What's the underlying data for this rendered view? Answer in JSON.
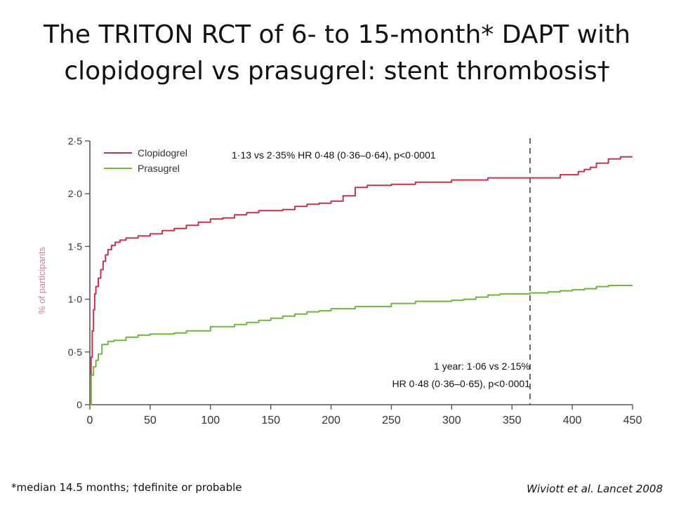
{
  "slide": {
    "title_line1": "The TRITON RCT of 6- to 15-month* DAPT with",
    "title_line2": "clopidogrel vs prasugrel: stent thrombosis†",
    "footnote": "*median 14.5 months; †definite or probable",
    "citation": "Wiviott et al. Lancet 2008"
  },
  "chart_data": {
    "type": "line",
    "ylabel": "% of participants",
    "xlabel": "",
    "xlim": [
      0,
      450
    ],
    "ylim": [
      0,
      2.5
    ],
    "x_ticks": [
      0,
      50,
      100,
      150,
      200,
      250,
      300,
      350,
      400,
      450
    ],
    "x_tick_labels": [
      "0",
      "50",
      "100",
      "150",
      "200",
      "250",
      "300",
      "350",
      "400",
      "450"
    ],
    "y_ticks": [
      0,
      0.5,
      1.0,
      1.5,
      2.0,
      2.5
    ],
    "y_tick_labels": [
      "0",
      "0·5",
      "1·0",
      "1·5",
      "2·0",
      "2·5"
    ],
    "grid": false,
    "legend_position": "top-left",
    "reference_line": {
      "x": 365,
      "style": "dashed"
    },
    "annotations": {
      "overall": "1·13 vs 2·35% HR 0·48 (0·36–0·64), p<0·0001",
      "one_year_line1": "1 year: 1·06 vs 2·15%",
      "one_year_line2": "HR 0·48 (0·36–0·65), p<0·0001"
    },
    "series": [
      {
        "name": "Clopidogrel",
        "color": "#c2334d",
        "points": [
          [
            0,
            0
          ],
          [
            0.5,
            0
          ],
          [
            1,
            0.45
          ],
          [
            2,
            0.7
          ],
          [
            3,
            0.9
          ],
          [
            4,
            1.05
          ],
          [
            5,
            1.12
          ],
          [
            7,
            1.2
          ],
          [
            9,
            1.28
          ],
          [
            11,
            1.36
          ],
          [
            13,
            1.42
          ],
          [
            15,
            1.47
          ],
          [
            18,
            1.51
          ],
          [
            21,
            1.54
          ],
          [
            25,
            1.56
          ],
          [
            30,
            1.58
          ],
          [
            40,
            1.6
          ],
          [
            50,
            1.62
          ],
          [
            60,
            1.65
          ],
          [
            70,
            1.67
          ],
          [
            80,
            1.7
          ],
          [
            90,
            1.73
          ],
          [
            100,
            1.76
          ],
          [
            110,
            1.77
          ],
          [
            120,
            1.8
          ],
          [
            130,
            1.82
          ],
          [
            140,
            1.84
          ],
          [
            150,
            1.84
          ],
          [
            160,
            1.85
          ],
          [
            170,
            1.88
          ],
          [
            180,
            1.9
          ],
          [
            190,
            1.91
          ],
          [
            200,
            1.93
          ],
          [
            210,
            1.98
          ],
          [
            220,
            2.06
          ],
          [
            230,
            2.08
          ],
          [
            250,
            2.09
          ],
          [
            270,
            2.11
          ],
          [
            290,
            2.11
          ],
          [
            300,
            2.13
          ],
          [
            320,
            2.13
          ],
          [
            330,
            2.15
          ],
          [
            350,
            2.15
          ],
          [
            365,
            2.15
          ],
          [
            380,
            2.15
          ],
          [
            390,
            2.18
          ],
          [
            400,
            2.18
          ],
          [
            405,
            2.21
          ],
          [
            410,
            2.23
          ],
          [
            415,
            2.25
          ],
          [
            420,
            2.29
          ],
          [
            430,
            2.33
          ],
          [
            440,
            2.35
          ],
          [
            450,
            2.35
          ]
        ]
      },
      {
        "name": "Prasugrel",
        "color": "#6db83a",
        "points": [
          [
            0,
            0
          ],
          [
            0.5,
            0
          ],
          [
            1,
            0.28
          ],
          [
            3,
            0.36
          ],
          [
            5,
            0.42
          ],
          [
            7,
            0.48
          ],
          [
            10,
            0.57
          ],
          [
            15,
            0.6
          ],
          [
            20,
            0.61
          ],
          [
            30,
            0.64
          ],
          [
            40,
            0.66
          ],
          [
            50,
            0.67
          ],
          [
            70,
            0.68
          ],
          [
            80,
            0.7
          ],
          [
            100,
            0.74
          ],
          [
            110,
            0.74
          ],
          [
            120,
            0.76
          ],
          [
            130,
            0.78
          ],
          [
            140,
            0.8
          ],
          [
            150,
            0.82
          ],
          [
            160,
            0.84
          ],
          [
            170,
            0.86
          ],
          [
            180,
            0.88
          ],
          [
            190,
            0.89
          ],
          [
            200,
            0.91
          ],
          [
            220,
            0.93
          ],
          [
            250,
            0.96
          ],
          [
            270,
            0.98
          ],
          [
            300,
            0.99
          ],
          [
            310,
            1.0
          ],
          [
            320,
            1.02
          ],
          [
            330,
            1.04
          ],
          [
            340,
            1.05
          ],
          [
            365,
            1.06
          ],
          [
            380,
            1.07
          ],
          [
            390,
            1.08
          ],
          [
            400,
            1.09
          ],
          [
            410,
            1.1
          ],
          [
            420,
            1.12
          ],
          [
            430,
            1.13
          ],
          [
            440,
            1.13
          ],
          [
            450,
            1.13
          ]
        ]
      }
    ]
  }
}
